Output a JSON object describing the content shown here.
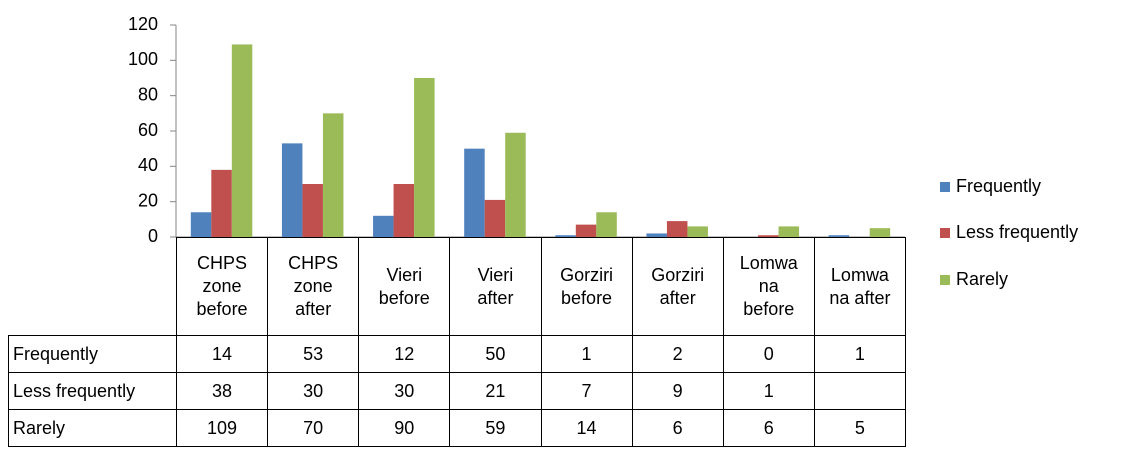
{
  "chart_data": {
    "type": "bar",
    "categories": [
      "CHPS zone before",
      "CHPS zone after",
      "Vieri before",
      "Vieri after",
      "Gorziri before",
      "Gorziri after",
      "Lomwana before",
      "Lomwana after"
    ],
    "series": [
      {
        "name": "Frequently",
        "color": "#4f81bd",
        "values": [
          14,
          53,
          12,
          50,
          1,
          2,
          0,
          1
        ]
      },
      {
        "name": "Less frequently",
        "color": "#c0504d",
        "values": [
          38,
          30,
          30,
          21,
          7,
          9,
          1,
          null
        ]
      },
      {
        "name": "Rarely",
        "color": "#9bbb59",
        "values": [
          109,
          70,
          90,
          59,
          14,
          6,
          6,
          5
        ]
      }
    ],
    "ylim": [
      0,
      120
    ],
    "yticks": [
      0,
      20,
      40,
      60,
      80,
      100,
      120
    ],
    "grid": false,
    "legend": "right"
  }
}
